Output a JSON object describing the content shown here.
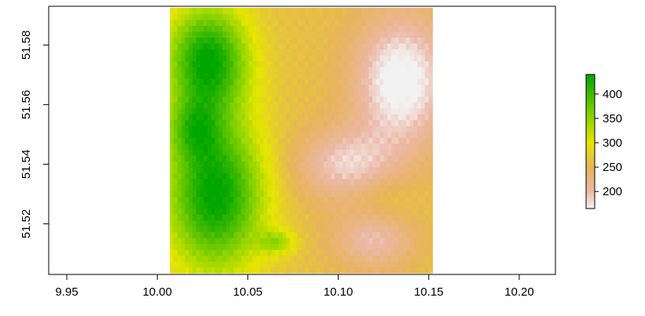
{
  "chart_data": {
    "type": "heatmap",
    "title": "",
    "xlabel": "",
    "ylabel": "",
    "xlim": [
      9.94,
      10.22
    ],
    "ylim": [
      51.503,
      51.593
    ],
    "x_ticks": [
      9.95,
      10.0,
      10.05,
      10.1,
      10.15,
      10.2
    ],
    "x_tick_labels": [
      "9.95",
      "10.00",
      "10.05",
      "10.10",
      "10.15",
      "10.20"
    ],
    "y_ticks": [
      51.52,
      51.54,
      51.56,
      51.58
    ],
    "y_tick_labels": [
      "51.52",
      "51.54",
      "51.56",
      "51.58"
    ],
    "raster_extent": {
      "xmin": 10.007,
      "xmax": 10.152,
      "ymin": 51.5035,
      "ymax": 51.5925
    },
    "value_range": [
      165,
      440
    ],
    "colorbar": {
      "ticks": [
        200,
        250,
        300,
        350,
        400
      ],
      "tick_labels": [
        "200",
        "250",
        "300",
        "350",
        "400"
      ],
      "palette": "terrain.colors",
      "stops": [
        {
          "value": 165,
          "color": "#f2f2f2"
        },
        {
          "value": 200,
          "color": "#ecb8a6"
        },
        {
          "value": 250,
          "color": "#e6b45a"
        },
        {
          "value": 300,
          "color": "#e6e600"
        },
        {
          "value": 350,
          "color": "#8fd400"
        },
        {
          "value": 440,
          "color": "#00a600"
        }
      ]
    },
    "features": [
      {
        "type": "ridge",
        "cx": 10.028,
        "cy": 51.575,
        "rx": 0.022,
        "ry": 0.018,
        "peak": 440
      },
      {
        "type": "ridge",
        "cx": 10.032,
        "cy": 51.53,
        "rx": 0.026,
        "ry": 0.025,
        "peak": 445
      },
      {
        "type": "ridge",
        "cx": 10.02,
        "cy": 51.552,
        "rx": 0.014,
        "ry": 0.01,
        "peak": 340
      },
      {
        "type": "hill",
        "cx": 10.066,
        "cy": 51.514,
        "rx": 0.01,
        "ry": 0.004,
        "peak": 330
      },
      {
        "type": "valley",
        "cx": 10.135,
        "cy": 51.568,
        "rx": 0.026,
        "ry": 0.022,
        "peak": 150
      },
      {
        "type": "valley",
        "cx": 10.105,
        "cy": 51.54,
        "rx": 0.028,
        "ry": 0.012,
        "peak": 185
      },
      {
        "type": "valley",
        "cx": 10.12,
        "cy": 51.515,
        "rx": 0.022,
        "ry": 0.01,
        "peak": 195
      },
      {
        "type": "plateau",
        "cx": 10.125,
        "cy": 51.528,
        "rx": 0.018,
        "ry": 0.01,
        "peak": 285
      }
    ]
  }
}
